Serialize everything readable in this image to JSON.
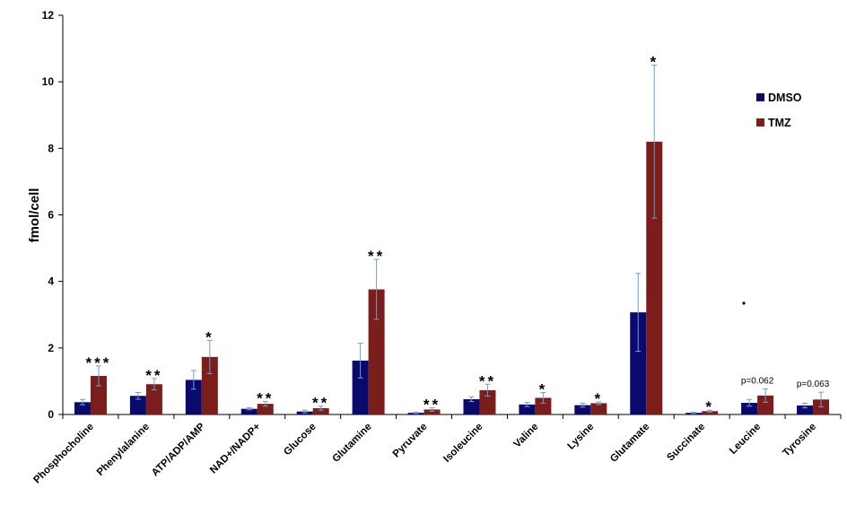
{
  "chart_data": {
    "type": "bar",
    "title": "",
    "xlabel": "",
    "ylabel": "fmol/cell",
    "ylim": [
      0,
      12
    ],
    "yticks": [
      "0",
      "2",
      "4",
      "6",
      "8",
      "10",
      "12"
    ],
    "legend_position": "top-right",
    "grid": false,
    "categories": [
      "Phosphocholine",
      "Phenylalanine",
      "ATP/ADP/AMP",
      "NAD+/NADP+",
      "Glucose",
      "Glutamine",
      "Pyruvate",
      "Isoleucine",
      "Valine",
      "Lysine",
      "Glutamate",
      "Succinate",
      "Leucine",
      "Tyrosine"
    ],
    "series": [
      {
        "name": "DMSO",
        "color": "#0a0a6e",
        "values": [
          0.37,
          0.56,
          1.04,
          0.17,
          0.09,
          1.62,
          0.05,
          0.46,
          0.3,
          0.28,
          3.07,
          0.05,
          0.35,
          0.27
        ],
        "errors": [
          0.08,
          0.1,
          0.28,
          0.03,
          0.04,
          0.52,
          0.02,
          0.07,
          0.06,
          0.06,
          1.17,
          0.02,
          0.1,
          0.07
        ]
      },
      {
        "name": "TMZ",
        "color": "#7b1d1a",
        "values": [
          1.16,
          0.91,
          1.73,
          0.32,
          0.19,
          3.76,
          0.15,
          0.73,
          0.5,
          0.34,
          8.2,
          0.1,
          0.57,
          0.45
        ],
        "errors": [
          0.3,
          0.17,
          0.5,
          0.07,
          0.06,
          0.9,
          0.05,
          0.18,
          0.16,
          0.04,
          2.3,
          0.03,
          0.2,
          0.22
        ]
      }
    ],
    "annotations": [
      "***",
      "**",
      "*",
      "**",
      "**",
      "**",
      "**",
      "**",
      "*",
      "*",
      "*",
      "*",
      "p=0.062",
      "p=0.063"
    ]
  }
}
